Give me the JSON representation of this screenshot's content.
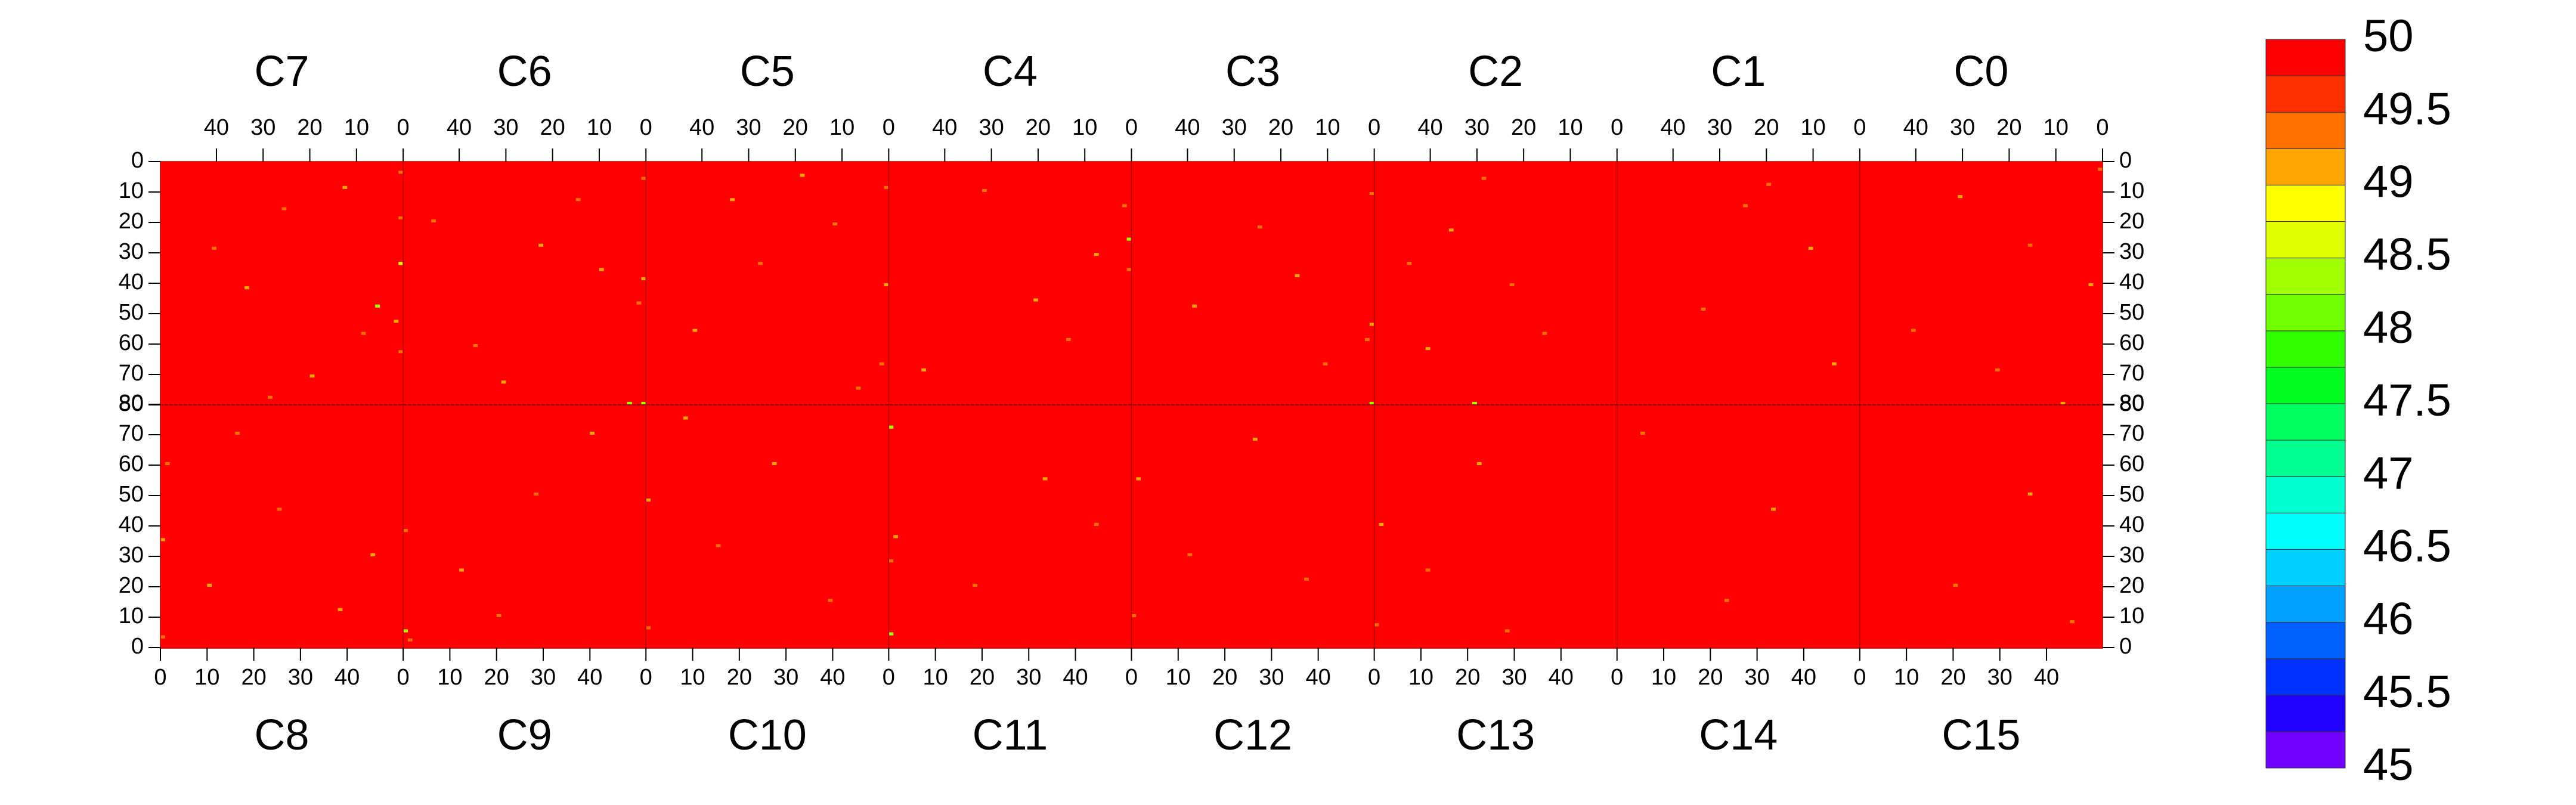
{
  "chart_data": {
    "type": "heatmap",
    "xlim": [
      0,
      52
    ],
    "xticks": [
      0,
      10,
      20,
      30,
      40
    ],
    "ylim": [
      0,
      80
    ],
    "yticks": [
      0,
      10,
      20,
      30,
      40,
      50,
      60,
      70,
      80
    ],
    "fill_value": 50,
    "colorbar": {
      "levels": [
        45,
        45.25,
        45.5,
        45.75,
        46,
        46.25,
        46.5,
        46.75,
        47,
        47.25,
        47.5,
        47.75,
        48,
        48.25,
        48.5,
        48.75,
        49,
        49.25,
        49.5,
        49.75,
        50
      ],
      "colors": [
        "#7000ff",
        "#2000ff",
        "#0030ff",
        "#0060ff",
        "#00a0ff",
        "#00d0ff",
        "#00ffff",
        "#00ffd0",
        "#00ff90",
        "#00ff60",
        "#00ff20",
        "#30ff00",
        "#70ff00",
        "#a0ff00",
        "#e0ff00",
        "#ffff00",
        "#ffa500",
        "#ff7000",
        "#ff3000",
        "#ff0000"
      ],
      "ticks": [
        50,
        49.5,
        49,
        48.5,
        48,
        47.5,
        47,
        46.5,
        46,
        45.5,
        45
      ]
    },
    "panels": [
      {
        "label": "C7",
        "cells": [
          [
            0,
            3,
            49.3
          ],
          [
            0,
            18,
            49.3
          ],
          [
            0,
            33,
            48.6
          ],
          [
            1,
            52,
            49.2
          ],
          [
            0,
            62,
            49.3
          ],
          [
            12,
            8,
            49.2
          ],
          [
            25,
            15,
            49.3
          ],
          [
            33,
            41,
            49.2
          ],
          [
            8,
            56,
            49.3
          ],
          [
            19,
            70,
            49.2
          ],
          [
            40,
            28,
            49.3
          ],
          [
            5,
            47,
            48.4
          ],
          [
            28,
            77,
            49.3
          ]
        ]
      },
      {
        "label": "C6",
        "cells": [
          [
            0,
            5,
            49.3
          ],
          [
            0,
            38,
            49.2
          ],
          [
            1,
            46,
            49.3
          ],
          [
            0,
            79,
            48.3
          ],
          [
            3,
            79,
            48.3
          ],
          [
            14,
            12,
            49.3
          ],
          [
            22,
            27,
            49.2
          ],
          [
            36,
            60,
            49.3
          ],
          [
            9,
            35,
            49.2
          ],
          [
            45,
            19,
            49.3
          ],
          [
            30,
            72,
            49.2
          ]
        ]
      },
      {
        "label": "C5",
        "cells": [
          [
            0,
            8,
            49.3
          ],
          [
            0,
            40,
            49.2
          ],
          [
            1,
            66,
            49.3
          ],
          [
            18,
            4,
            49.2
          ],
          [
            27,
            33,
            49.3
          ],
          [
            41,
            55,
            49.2
          ],
          [
            11,
            20,
            49.3
          ],
          [
            6,
            74,
            49.3
          ],
          [
            33,
            12,
            49.2
          ]
        ]
      },
      {
        "label": "C4",
        "cells": [
          [
            0,
            25,
            48.3
          ],
          [
            0,
            35,
            49.3
          ],
          [
            1,
            14,
            49.3
          ],
          [
            20,
            45,
            49.2
          ],
          [
            31,
            9,
            49.3
          ],
          [
            44,
            68,
            49.2
          ],
          [
            13,
            58,
            49.3
          ],
          [
            7,
            30,
            49.2
          ]
        ]
      },
      {
        "label": "C3",
        "cells": [
          [
            0,
            10,
            49.3
          ],
          [
            0,
            53,
            49.2
          ],
          [
            1,
            58,
            49.3
          ],
          [
            0,
            79,
            48.4
          ],
          [
            24,
            21,
            49.3
          ],
          [
            38,
            47,
            49.2
          ],
          [
            10,
            66,
            49.3
          ],
          [
            16,
            37,
            49.2
          ]
        ]
      },
      {
        "label": "C2",
        "cells": [
          [
            28,
            5,
            49.3
          ],
          [
            35,
            22,
            49.2
          ],
          [
            22,
            40,
            49.3
          ],
          [
            40,
            61,
            49.2
          ],
          [
            30,
            79,
            48.4
          ],
          [
            44,
            33,
            49.3
          ],
          [
            15,
            56,
            49.3
          ]
        ]
      },
      {
        "label": "C1",
        "cells": [
          [
            24,
            14,
            49.3
          ],
          [
            10,
            28,
            49.2
          ],
          [
            33,
            48,
            49.3
          ],
          [
            5,
            66,
            49.2
          ],
          [
            19,
            7,
            49.3
          ]
        ]
      },
      {
        "label": "C0",
        "cells": [
          [
            0,
            2,
            49.3
          ],
          [
            2,
            40,
            49.2
          ],
          [
            15,
            27,
            49.3
          ],
          [
            30,
            11,
            49.2
          ],
          [
            40,
            55,
            49.3
          ],
          [
            8,
            79,
            49.2
          ],
          [
            22,
            68,
            49.3
          ]
        ]
      },
      {
        "label": "C8",
        "cells": [
          [
            0,
            3,
            49.3
          ],
          [
            0,
            35,
            49.2
          ],
          [
            1,
            60,
            49.3
          ],
          [
            10,
            20,
            49.2
          ],
          [
            25,
            45,
            49.3
          ],
          [
            38,
            12,
            49.2
          ],
          [
            16,
            70,
            49.3
          ],
          [
            45,
            30,
            49.2
          ]
        ]
      },
      {
        "label": "C9",
        "cells": [
          [
            0,
            5,
            48.4
          ],
          [
            1,
            2,
            49.3
          ],
          [
            0,
            38,
            49.3
          ],
          [
            12,
            25,
            49.2
          ],
          [
            28,
            50,
            49.3
          ],
          [
            40,
            70,
            49.2
          ],
          [
            20,
            10,
            49.3
          ]
        ]
      },
      {
        "label": "C10",
        "cells": [
          [
            0,
            6,
            49.3
          ],
          [
            0,
            48,
            49.2
          ],
          [
            15,
            33,
            49.3
          ],
          [
            27,
            60,
            49.2
          ],
          [
            39,
            15,
            49.3
          ],
          [
            8,
            75,
            49.2
          ]
        ]
      },
      {
        "label": "C11",
        "cells": [
          [
            0,
            4,
            48.4
          ],
          [
            0,
            28,
            49.3
          ],
          [
            1,
            36,
            49.2
          ],
          [
            0,
            72,
            48.3
          ],
          [
            18,
            20,
            49.3
          ],
          [
            33,
            55,
            49.2
          ],
          [
            44,
            40,
            49.3
          ]
        ]
      },
      {
        "label": "C12",
        "cells": [
          [
            0,
            10,
            49.3
          ],
          [
            1,
            55,
            49.2
          ],
          [
            12,
            30,
            49.3
          ],
          [
            26,
            68,
            49.2
          ],
          [
            37,
            22,
            49.3
          ]
        ]
      },
      {
        "label": "C13",
        "cells": [
          [
            0,
            7,
            49.3
          ],
          [
            1,
            40,
            49.2
          ],
          [
            11,
            25,
            49.3
          ],
          [
            22,
            60,
            49.2
          ],
          [
            28,
            5,
            49.3
          ]
        ]
      },
      {
        "label": "C14",
        "cells": [
          [
            23,
            15,
            49.3
          ],
          [
            33,
            45,
            49.2
          ],
          [
            5,
            70,
            49.3
          ]
        ]
      },
      {
        "label": "C15",
        "cells": [
          [
            20,
            20,
            49.3
          ],
          [
            36,
            50,
            49.2
          ],
          [
            45,
            8,
            49.3
          ]
        ]
      }
    ]
  }
}
